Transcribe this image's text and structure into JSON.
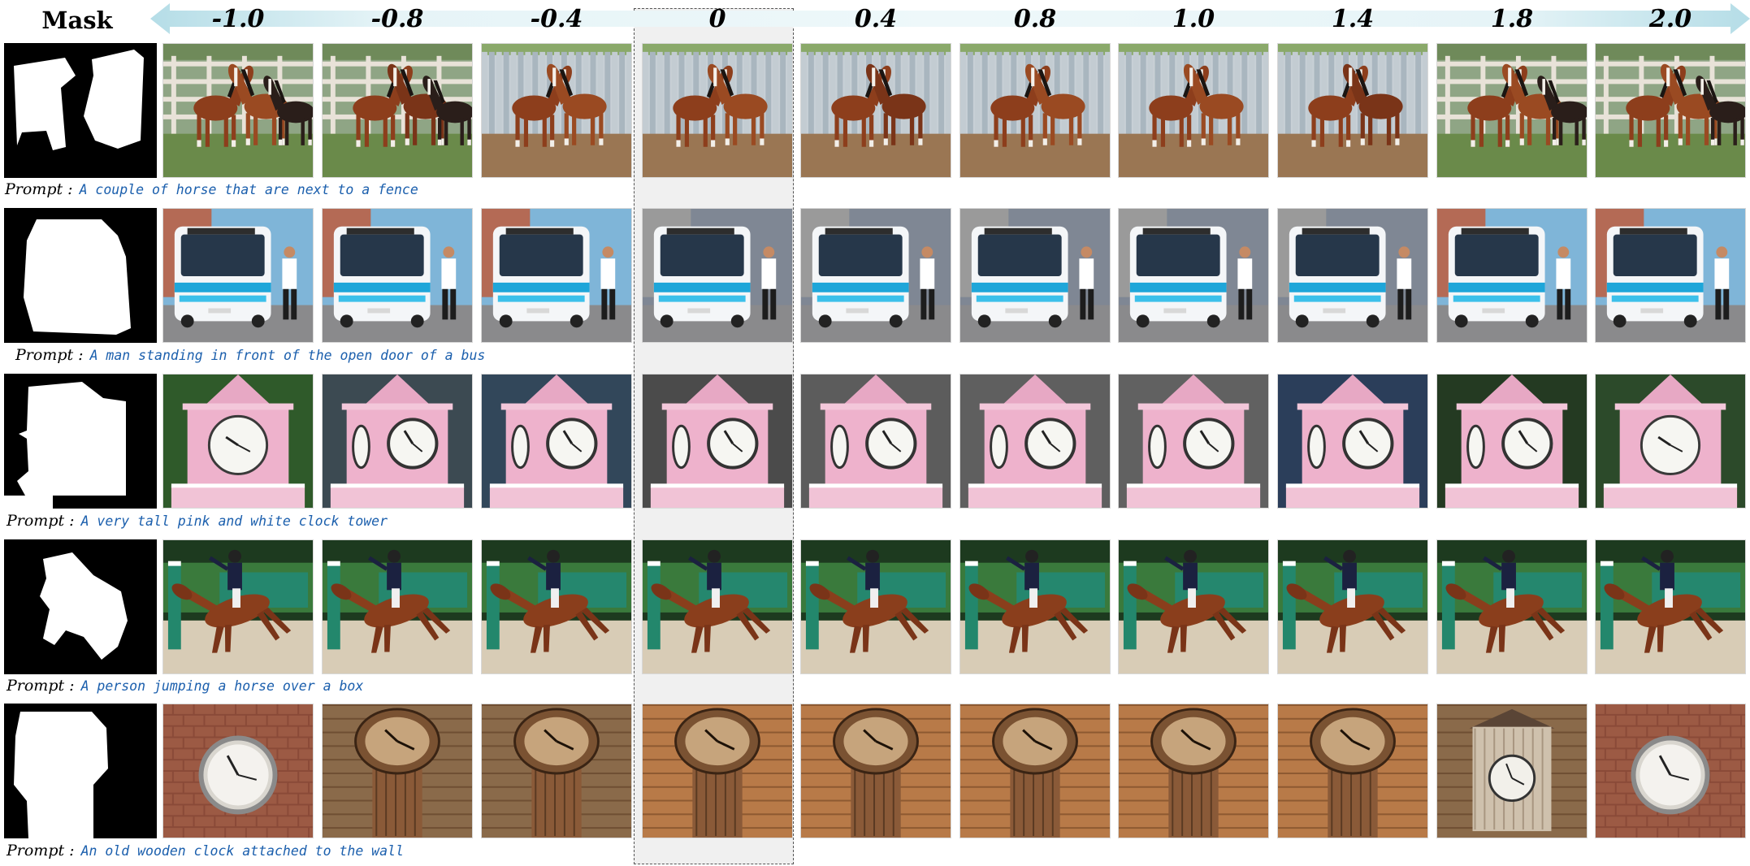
{
  "header": {
    "mask_label": "Mask",
    "scale_values": [
      "-1.0",
      "-0.8",
      "-0.4",
      "0",
      "0.4",
      "0.8",
      "1.0",
      "1.4",
      "1.8",
      "2.0"
    ],
    "highlighted_value": "0"
  },
  "prompt_key": "Prompt :",
  "rows": [
    {
      "prompt": "A couple of horse that are next to a fence",
      "subject": "horses-and-fence"
    },
    {
      "prompt": "A man standing in front of the open door of a bus",
      "subject": "bus-and-man"
    },
    {
      "prompt": "A very tall pink and white clock tower",
      "subject": "pink-clock-tower"
    },
    {
      "prompt": "A person jumping a horse over a box",
      "subject": "show-jumping-horse"
    },
    {
      "prompt": "An old wooden clock attached to the wall",
      "subject": "wooden-wall-clock"
    }
  ],
  "colors": {
    "arrow": "#cfe9ef",
    "prompt_text": "#1b5fad",
    "highlight_bg": "#f0f0f0"
  }
}
